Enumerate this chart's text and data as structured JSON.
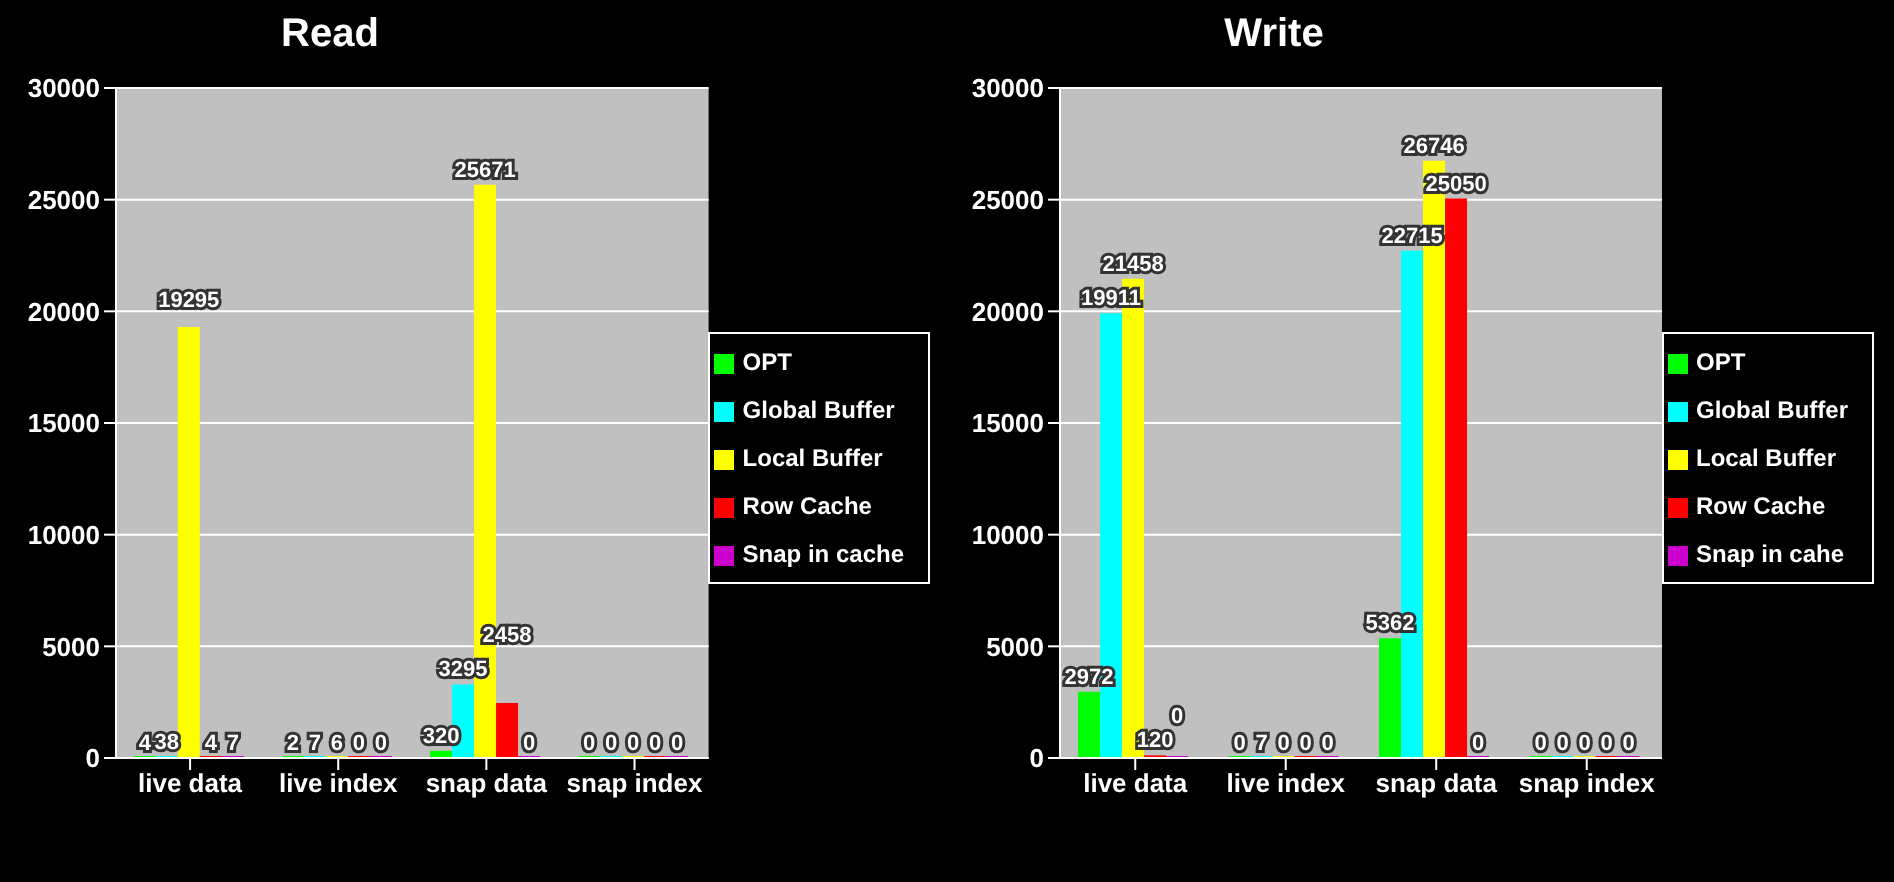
{
  "chart_data": [
    {
      "type": "bar",
      "title": "Read",
      "categories": [
        "live data",
        "live index",
        "snap data",
        "snap index"
      ],
      "series": [
        {
          "name": "OPT",
          "color": "#00ff00",
          "values": [
            4,
            2,
            320,
            0
          ]
        },
        {
          "name": "Global Buffer",
          "color": "#00ffff",
          "values": [
            38,
            7,
            3295,
            0
          ]
        },
        {
          "name": "Local Buffer",
          "color": "#ffff00",
          "values": [
            19295,
            6,
            25671,
            0
          ]
        },
        {
          "name": "Row Cache",
          "color": "#ff0000",
          "values": [
            4,
            0,
            2458,
            0
          ]
        },
        {
          "name": "Snap in cache",
          "color": "#cc00cc",
          "values": [
            7,
            0,
            0,
            0
          ]
        }
      ],
      "ylim": [
        0,
        30000
      ],
      "yticks": [
        0,
        5000,
        10000,
        15000,
        20000,
        25000,
        30000
      ],
      "grid": "y",
      "legend": "right",
      "data_labels": true
    },
    {
      "type": "bar",
      "title": "Write",
      "categories": [
        "live data",
        "live index",
        "snap data",
        "snap index"
      ],
      "series": [
        {
          "name": "OPT",
          "color": "#00ff00",
          "values": [
            2972,
            0,
            5362,
            0
          ]
        },
        {
          "name": "Global Buffer",
          "color": "#00ffff",
          "values": [
            19911,
            7,
            22715,
            0
          ]
        },
        {
          "name": "Local Buffer",
          "color": "#ffff00",
          "values": [
            21458,
            0,
            26746,
            0
          ]
        },
        {
          "name": "Row Cache",
          "color": "#ff0000",
          "values": [
            120,
            0,
            25050,
            0
          ]
        },
        {
          "name": "Snap in cahe",
          "color": "#cc00cc",
          "values": [
            0,
            0,
            0,
            0
          ]
        }
      ],
      "ylim": [
        0,
        30000
      ],
      "yticks": [
        0,
        5000,
        10000,
        15000,
        20000,
        25000,
        30000
      ],
      "grid": "y",
      "legend": "right",
      "data_labels": true
    }
  ]
}
